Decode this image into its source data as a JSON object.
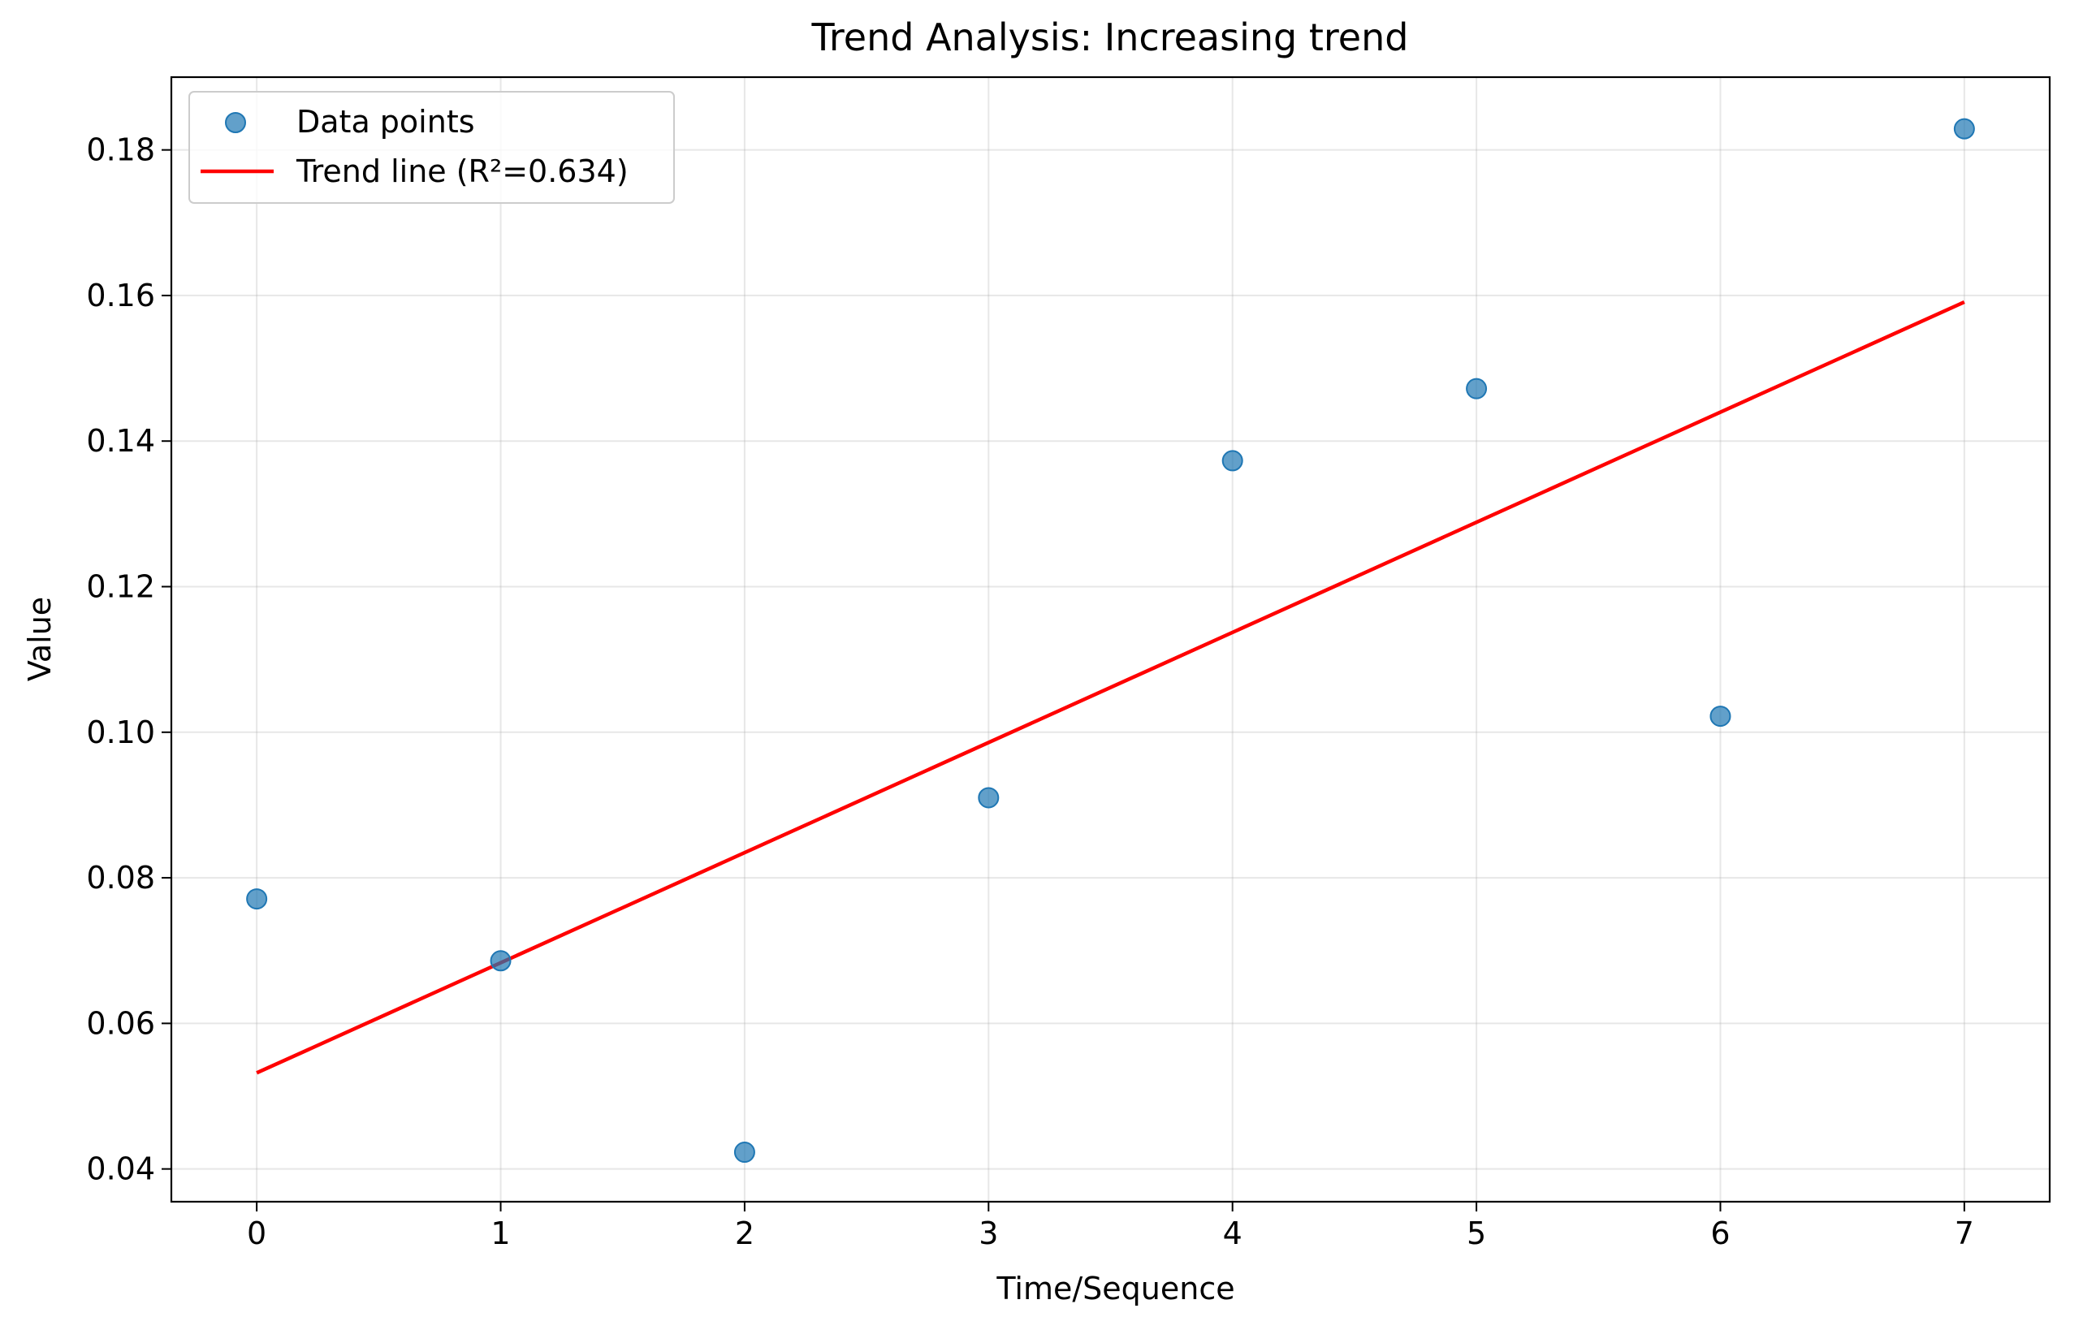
{
  "chart_data": {
    "type": "scatter",
    "title": "Trend Analysis: Increasing trend",
    "xlabel": "Time/Sequence",
    "ylabel": "Value",
    "xlim": [
      -0.35,
      7.35
    ],
    "ylim": [
      0.0355,
      0.19
    ],
    "xticks": [
      0,
      1,
      2,
      3,
      4,
      5,
      6,
      7
    ],
    "xtick_labels": [
      "0",
      "1",
      "2",
      "3",
      "4",
      "5",
      "6",
      "7"
    ],
    "yticks": [
      0.04,
      0.06,
      0.08,
      0.1,
      0.12,
      0.14,
      0.16,
      0.18
    ],
    "ytick_labels": [
      "0.04",
      "0.06",
      "0.08",
      "0.10",
      "0.12",
      "0.14",
      "0.16",
      "0.18"
    ],
    "grid": true,
    "legend_position": "top-left",
    "series": [
      {
        "name": "Data points",
        "kind": "scatter",
        "color": "#1f77b4",
        "x": [
          0,
          1,
          2,
          3,
          4,
          5,
          6,
          7
        ],
        "y": [
          0.0771,
          0.0686,
          0.0423,
          0.091,
          0.1373,
          0.1472,
          0.1022,
          0.1829
        ]
      },
      {
        "name": "Trend line (R²=0.634)",
        "kind": "line",
        "color": "#ff0000",
        "x": [
          0,
          7
        ],
        "y": [
          0.0532,
          0.1591
        ]
      }
    ]
  }
}
